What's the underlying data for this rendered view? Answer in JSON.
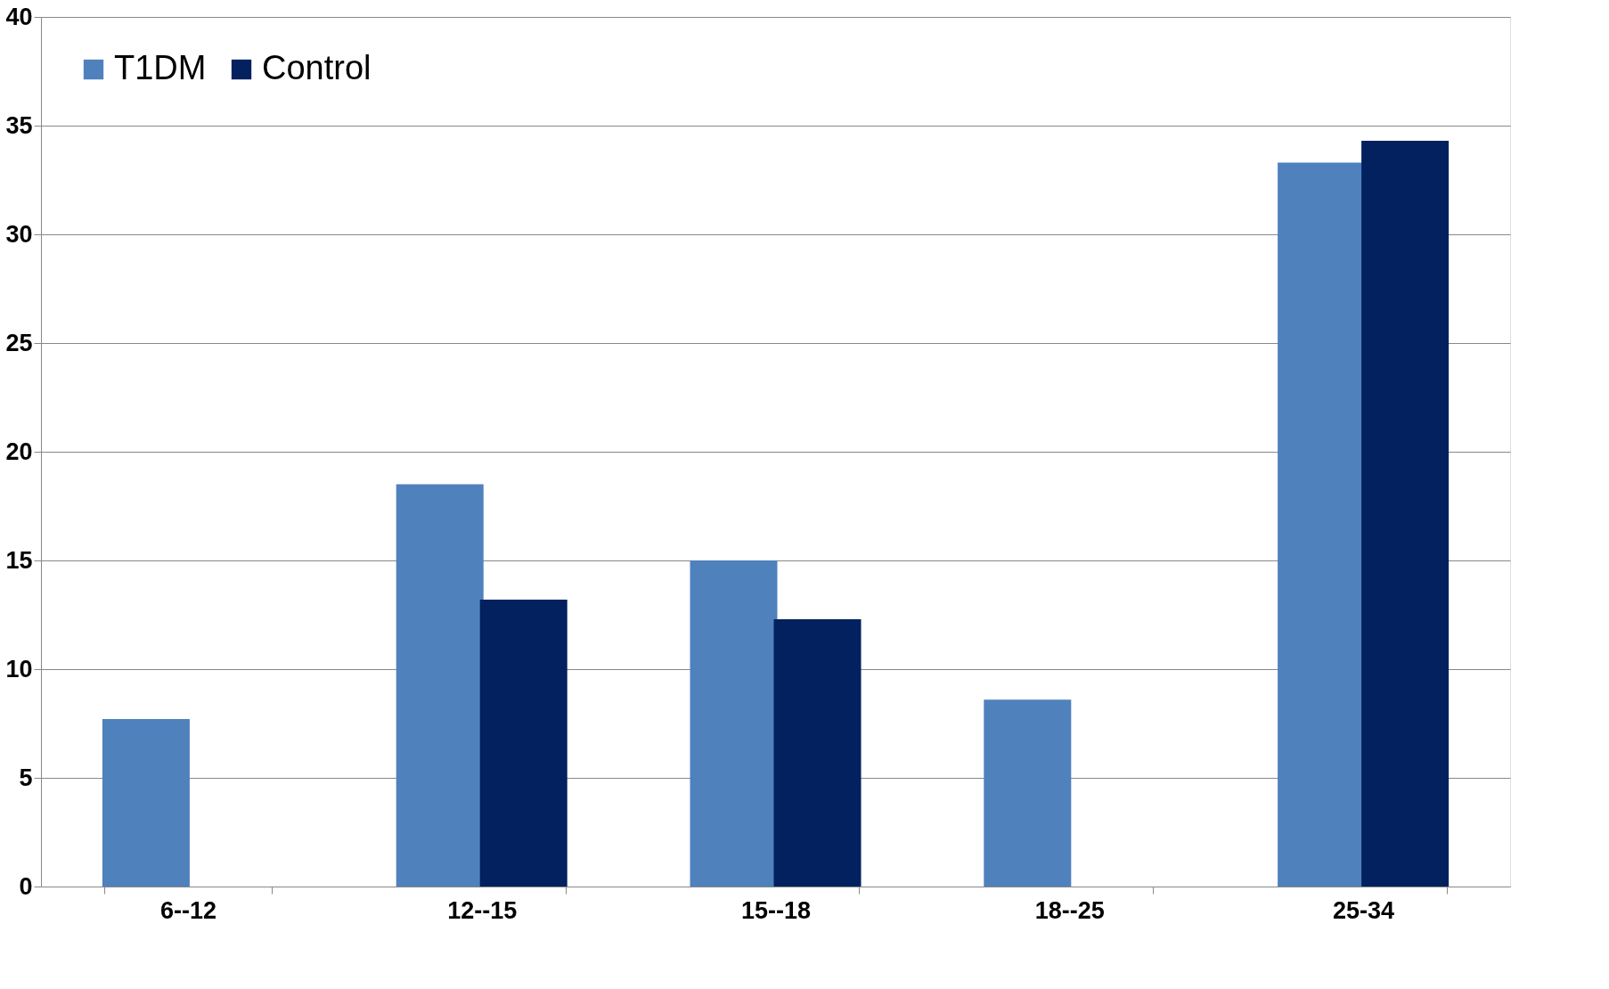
{
  "chart_data": {
    "type": "bar",
    "categories": [
      "6--12",
      "12--15",
      "15--18",
      "18--25",
      "25-34"
    ],
    "series": [
      {
        "name": "T1DM",
        "color": "#4f81bd",
        "values": [
          7.7,
          18.5,
          15.0,
          8.6,
          33.3
        ]
      },
      {
        "name": "Control",
        "color": "#03215e",
        "values": [
          0,
          13.2,
          12.3,
          0,
          34.3
        ]
      }
    ],
    "ylim": [
      0,
      40
    ],
    "yticks": [
      0,
      5,
      10,
      15,
      20,
      25,
      30,
      35,
      40
    ],
    "grid": "y",
    "legend": "top left"
  }
}
